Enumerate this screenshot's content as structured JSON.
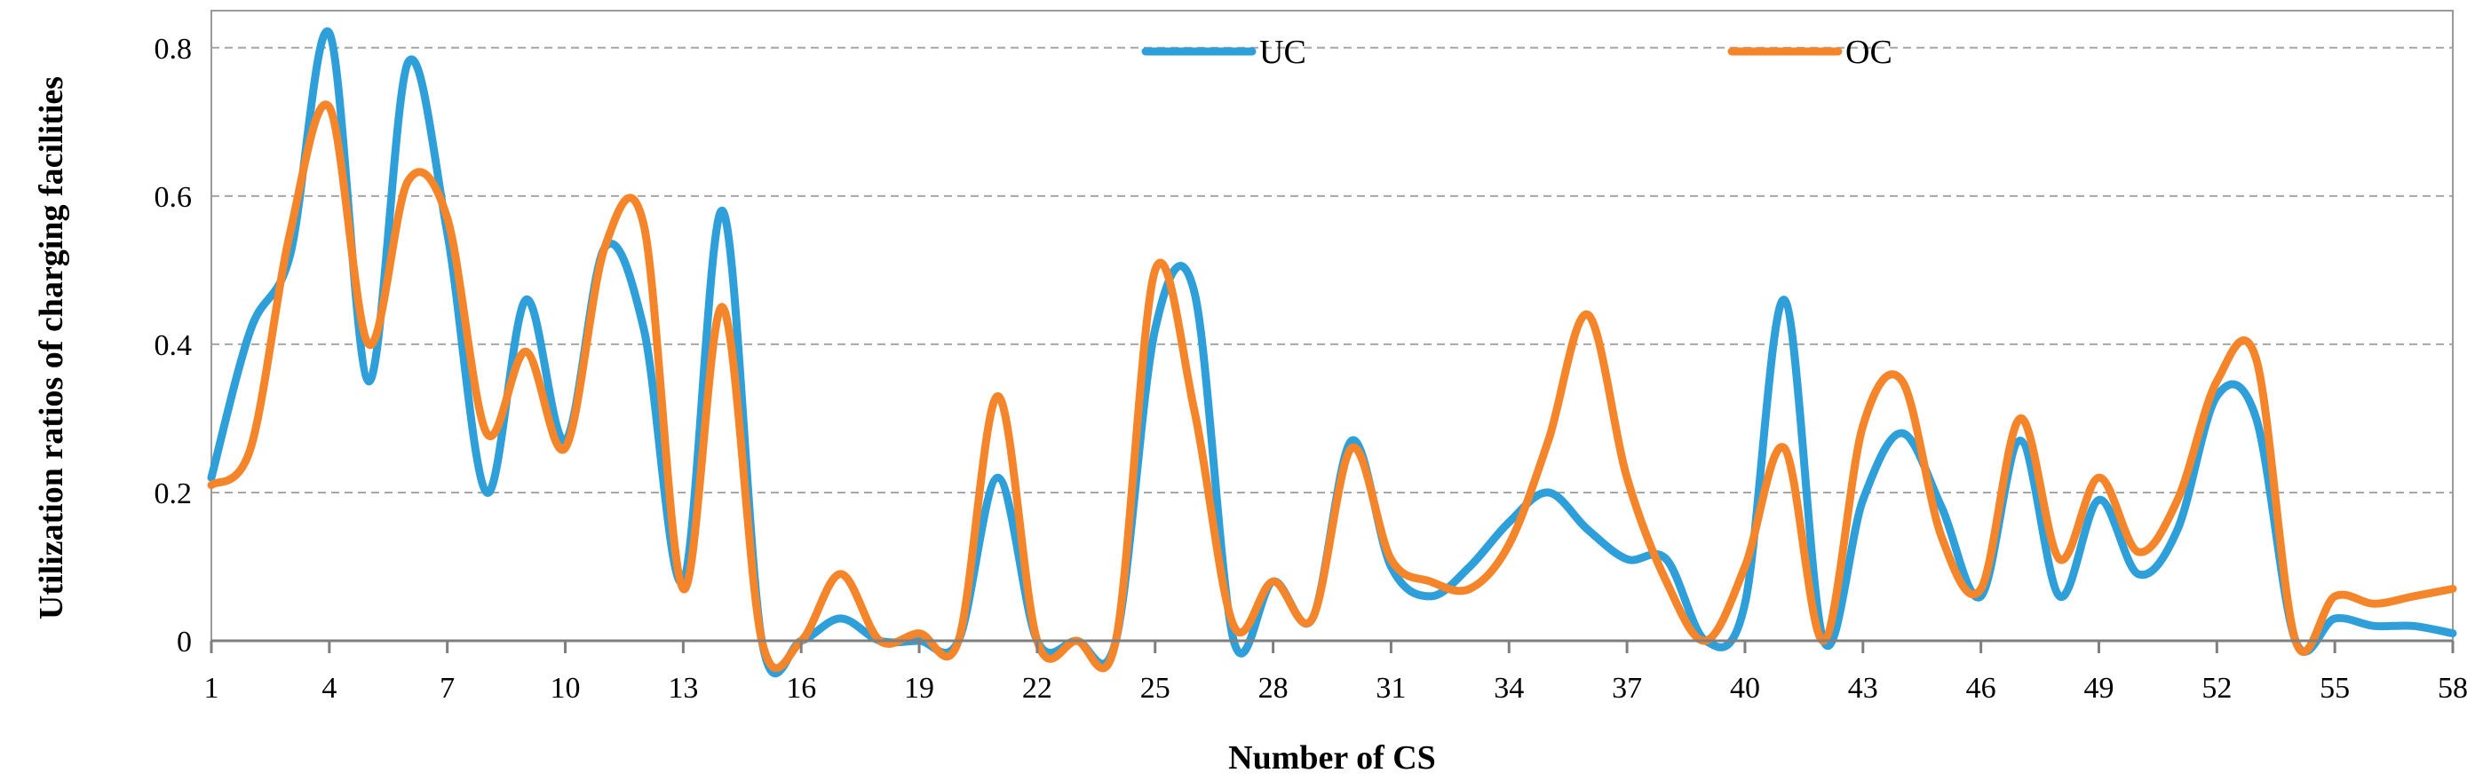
{
  "chart_data": {
    "type": "line",
    "smooth": true,
    "xlabel": "Number of CS",
    "ylabel": "Utilization ratios of charging facilities",
    "x": [
      1,
      2,
      3,
      4,
      5,
      6,
      7,
      8,
      9,
      10,
      11,
      12,
      13,
      14,
      15,
      16,
      17,
      18,
      19,
      20,
      21,
      22,
      23,
      24,
      25,
      26,
      27,
      28,
      29,
      30,
      31,
      32,
      33,
      34,
      35,
      36,
      37,
      38,
      39,
      40,
      41,
      42,
      43,
      44,
      45,
      46,
      47,
      48,
      49,
      50,
      51,
      52,
      53,
      54,
      55,
      56,
      57,
      58
    ],
    "xlim": [
      1,
      58
    ],
    "xticks": [
      1,
      4,
      7,
      10,
      13,
      16,
      19,
      22,
      25,
      28,
      31,
      34,
      37,
      40,
      43,
      46,
      49,
      52,
      55,
      58
    ],
    "ylim": [
      0,
      0.85
    ],
    "yticks": [
      0,
      0.2,
      0.4,
      0.6,
      0.8
    ],
    "ytick_labels": [
      "0",
      "0.2",
      "0.4",
      "0.6",
      "0.8"
    ],
    "grid": "horizontal dashed",
    "legend_position": "top",
    "series": [
      {
        "name": "UC",
        "color": "#2e9fd8",
        "values": [
          0.22,
          0.42,
          0.52,
          0.82,
          0.35,
          0.78,
          0.55,
          0.2,
          0.46,
          0.27,
          0.53,
          0.42,
          0.08,
          0.58,
          0.0,
          0.0,
          0.03,
          0.0,
          0.0,
          0.0,
          0.22,
          0.0,
          0.0,
          0.0,
          0.42,
          0.47,
          0.0,
          0.08,
          0.03,
          0.27,
          0.1,
          0.06,
          0.1,
          0.16,
          0.2,
          0.15,
          0.11,
          0.11,
          0.0,
          0.05,
          0.46,
          0.0,
          0.19,
          0.28,
          0.18,
          0.06,
          0.27,
          0.06,
          0.19,
          0.09,
          0.15,
          0.33,
          0.3,
          0.0,
          0.03,
          0.02,
          0.02,
          0.01
        ]
      },
      {
        "name": "OC",
        "color": "#f5852a",
        "values": [
          0.21,
          0.26,
          0.55,
          0.72,
          0.4,
          0.62,
          0.57,
          0.28,
          0.39,
          0.26,
          0.53,
          0.56,
          0.07,
          0.45,
          0.0,
          0.0,
          0.09,
          0.0,
          0.01,
          0.0,
          0.33,
          0.0,
          0.0,
          0.0,
          0.5,
          0.31,
          0.02,
          0.08,
          0.03,
          0.26,
          0.11,
          0.08,
          0.07,
          0.13,
          0.27,
          0.44,
          0.22,
          0.08,
          0.0,
          0.1,
          0.26,
          0.0,
          0.29,
          0.35,
          0.14,
          0.07,
          0.3,
          0.11,
          0.22,
          0.12,
          0.19,
          0.35,
          0.38,
          0.0,
          0.06,
          0.05,
          0.06,
          0.07
        ]
      }
    ]
  }
}
